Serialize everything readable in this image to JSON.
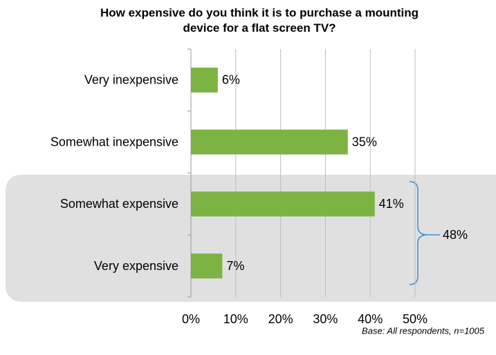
{
  "chart_data": {
    "type": "bar",
    "orientation": "horizontal",
    "title": "How expensive do you think it is to purchase a mounting device for a flat screen TV?",
    "categories": [
      "Very inexpensive",
      "Somewhat inexpensive",
      "Somewhat expensive",
      "Very expensive"
    ],
    "values": [
      6,
      35,
      41,
      7
    ],
    "value_labels": [
      "6%",
      "35%",
      "41%",
      "7%"
    ],
    "color": "#7cb342",
    "xlim": [
      0,
      50
    ],
    "xticks": [
      {
        "value": 0,
        "label": "0%"
      },
      {
        "value": 10,
        "label": "10%"
      },
      {
        "value": 20,
        "label": "20%"
      },
      {
        "value": 30,
        "label": "30%"
      },
      {
        "value": 40,
        "label": "40%"
      },
      {
        "value": 50,
        "label": "50%"
      }
    ],
    "grid": true,
    "bracket_label": "48%",
    "footnote": "Base: All respondents, n=1005"
  }
}
